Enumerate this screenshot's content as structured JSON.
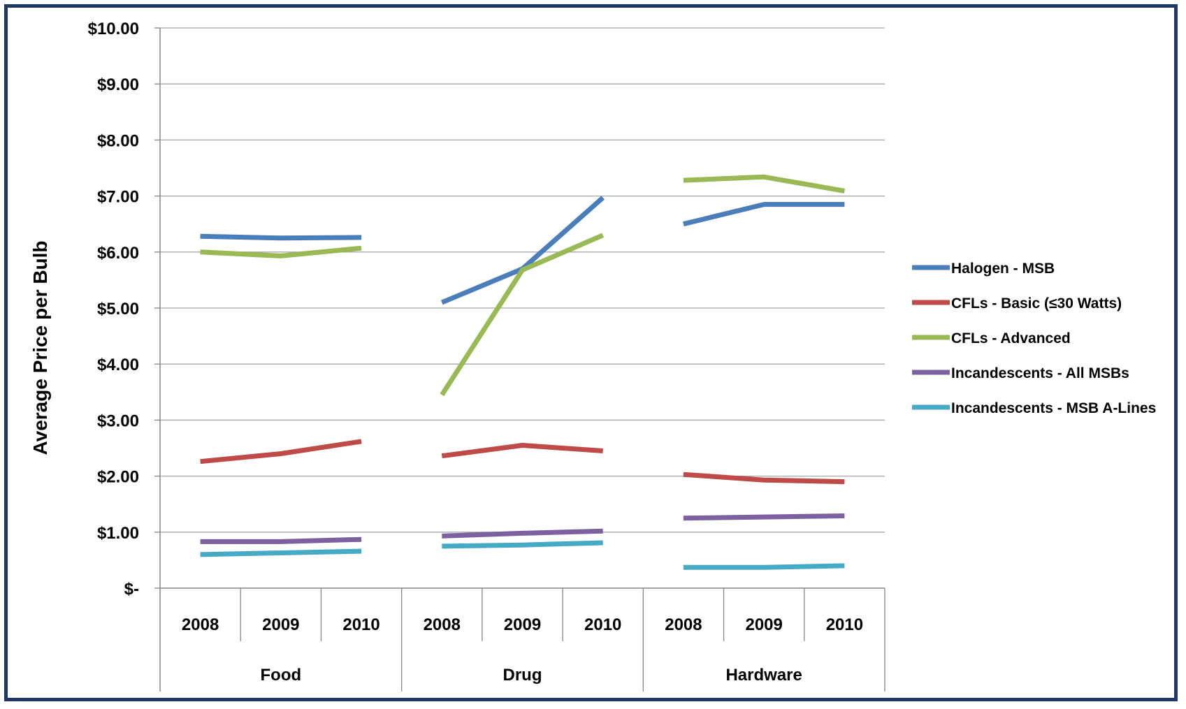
{
  "chart_data": {
    "type": "line",
    "title": "",
    "xlabel": "",
    "ylabel": "Average Price per Bulb",
    "ylim": [
      0,
      10
    ],
    "y_ticks": [
      {
        "value": 10,
        "label": "$10.00"
      },
      {
        "value": 9,
        "label": "$9.00"
      },
      {
        "value": 8,
        "label": "$8.00"
      },
      {
        "value": 7,
        "label": "$7.00"
      },
      {
        "value": 6,
        "label": "$6.00"
      },
      {
        "value": 5,
        "label": "$5.00"
      },
      {
        "value": 4,
        "label": "$4.00"
      },
      {
        "value": 3,
        "label": "$3.00"
      },
      {
        "value": 2,
        "label": "$2.00"
      },
      {
        "value": 1,
        "label": "$1.00"
      },
      {
        "value": 0,
        "label": "$-"
      }
    ],
    "grid": true,
    "legend_position": "right",
    "groups": [
      {
        "name": "Food",
        "years": [
          "2008",
          "2009",
          "2010"
        ]
      },
      {
        "name": "Drug",
        "years": [
          "2008",
          "2009",
          "2010"
        ]
      },
      {
        "name": "Hardware",
        "years": [
          "2008",
          "2009",
          "2010"
        ]
      }
    ],
    "series": [
      {
        "name": "Halogen - MSB",
        "color": "#4a7ebb",
        "values": [
          [
            6.28,
            6.25,
            6.26
          ],
          [
            5.1,
            5.7,
            6.97
          ],
          [
            6.5,
            6.85,
            6.85
          ]
        ]
      },
      {
        "name": "CFLs - Basic (≤30 Watts)",
        "color": "#be4b48",
        "values": [
          [
            2.26,
            2.4,
            2.62
          ],
          [
            2.36,
            2.55,
            2.45
          ],
          [
            2.03,
            1.93,
            1.9
          ]
        ]
      },
      {
        "name": "CFLs - Advanced",
        "color": "#98b954",
        "values": [
          [
            6.0,
            5.93,
            6.07
          ],
          [
            3.45,
            5.68,
            6.3
          ],
          [
            7.28,
            7.34,
            7.09
          ]
        ]
      },
      {
        "name": "Incandescents - All MSBs",
        "color": "#7d60a0",
        "values": [
          [
            0.83,
            0.83,
            0.87
          ],
          [
            0.93,
            0.98,
            1.02
          ],
          [
            1.25,
            1.27,
            1.29
          ]
        ]
      },
      {
        "name": "Incandescents - MSB A-Lines",
        "color": "#46aac5",
        "values": [
          [
            0.6,
            0.63,
            0.66
          ],
          [
            0.75,
            0.77,
            0.81
          ],
          [
            0.37,
            0.37,
            0.4
          ]
        ]
      }
    ]
  }
}
